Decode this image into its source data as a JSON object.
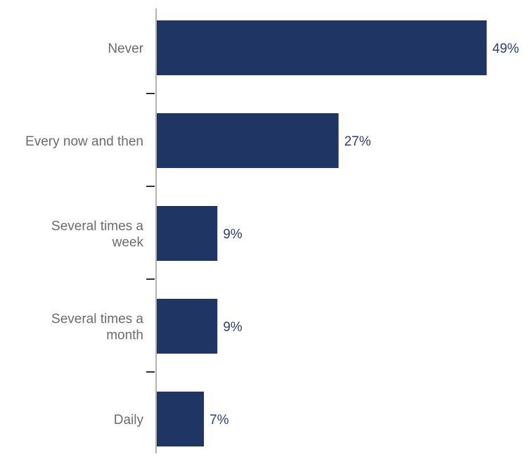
{
  "chart_data": {
    "type": "bar",
    "orientation": "horizontal",
    "categories": [
      [
        "Never"
      ],
      [
        "Every now and then"
      ],
      [
        "Several times a",
        "week"
      ],
      [
        "Several times a",
        "month"
      ],
      [
        "Daily"
      ]
    ],
    "values": [
      49,
      27,
      9,
      9,
      7
    ],
    "data_labels": [
      "49%",
      "27%",
      "9%",
      "9%",
      "7%"
    ],
    "value_unit": "%",
    "xlim": [
      0,
      52
    ],
    "grid": false,
    "legend": "none",
    "colors": {
      "bar": "#1f3564",
      "data_label": "#2b3f73",
      "category_label": "#6b6b6b",
      "axis": "#9a9a9a",
      "tick": "#333333"
    }
  }
}
